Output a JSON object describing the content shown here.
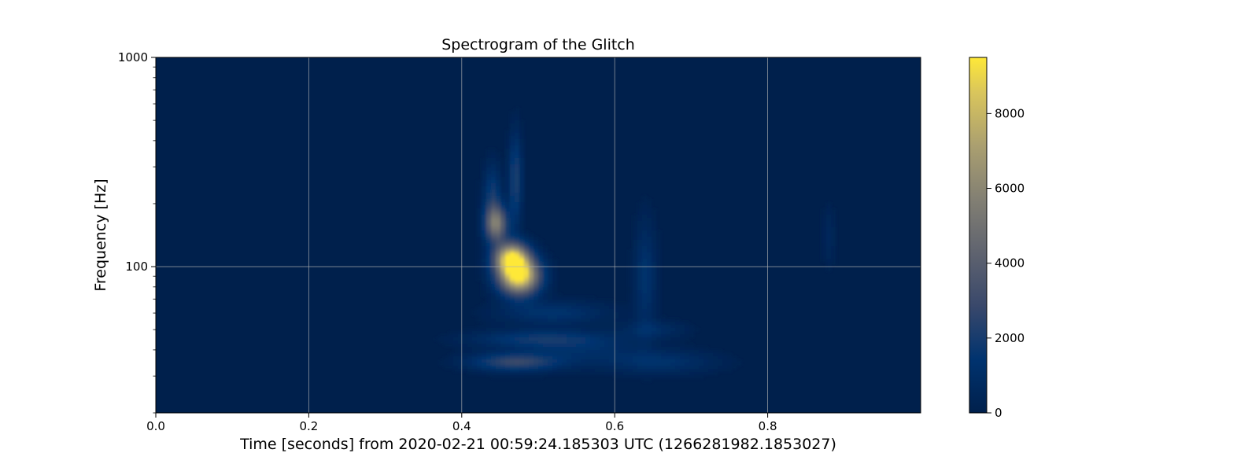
{
  "chart_data": {
    "type": "heatmap",
    "title": "Spectrogram of the Glitch",
    "xlabel": "Time [seconds] from 2020-02-21 00:59:24.185303 UTC (1266281982.1853027)",
    "ylabel": "Frequency [Hz]",
    "xlim": [
      0.0,
      1.0
    ],
    "ylim": [
      20,
      1000
    ],
    "yscale": "log",
    "grid": true,
    "colormap": "cividis",
    "x_ticks": [
      0.0,
      0.2,
      0.4,
      0.6,
      0.8
    ],
    "x_tick_labels": [
      "0.0",
      "0.2",
      "0.4",
      "0.6",
      "0.8"
    ],
    "y_ticks": [
      100,
      1000
    ],
    "y_tick_labels": [
      "100",
      "1000"
    ],
    "colorbar": {
      "range": [
        0,
        9500
      ],
      "ticks": [
        0,
        2000,
        4000,
        6000,
        8000
      ],
      "tick_labels": [
        "0",
        "2000",
        "4000",
        "6000",
        "8000"
      ]
    },
    "features": [
      {
        "t": 0.475,
        "f": 90,
        "sigma_t": 0.018,
        "sigma_logf": 0.06,
        "value": 9500
      },
      {
        "t": 0.465,
        "f": 110,
        "sigma_t": 0.015,
        "sigma_logf": 0.05,
        "value": 8200
      },
      {
        "t": 0.445,
        "f": 160,
        "sigma_t": 0.01,
        "sigma_logf": 0.06,
        "value": 5400
      },
      {
        "t": 0.47,
        "f": 260,
        "sigma_t": 0.006,
        "sigma_logf": 0.15,
        "value": 2200
      },
      {
        "t": 0.44,
        "f": 220,
        "sigma_t": 0.008,
        "sigma_logf": 0.1,
        "value": 1800
      },
      {
        "t": 0.47,
        "f": 35,
        "sigma_t": 0.04,
        "sigma_logf": 0.03,
        "value": 2800
      },
      {
        "t": 0.5,
        "f": 45,
        "sigma_t": 0.06,
        "sigma_logf": 0.03,
        "value": 1700
      },
      {
        "t": 0.52,
        "f": 60,
        "sigma_t": 0.05,
        "sigma_logf": 0.04,
        "value": 1300
      },
      {
        "t": 0.64,
        "f": 90,
        "sigma_t": 0.01,
        "sigma_logf": 0.18,
        "value": 1300
      },
      {
        "t": 0.66,
        "f": 35,
        "sigma_t": 0.05,
        "sigma_logf": 0.04,
        "value": 1200
      },
      {
        "t": 0.65,
        "f": 50,
        "sigma_t": 0.03,
        "sigma_logf": 0.03,
        "value": 900
      },
      {
        "t": 0.88,
        "f": 140,
        "sigma_t": 0.006,
        "sigma_logf": 0.1,
        "value": 600
      },
      {
        "t": 0.56,
        "f": 40,
        "sigma_t": 0.05,
        "sigma_logf": 0.05,
        "value": 900
      }
    ]
  }
}
